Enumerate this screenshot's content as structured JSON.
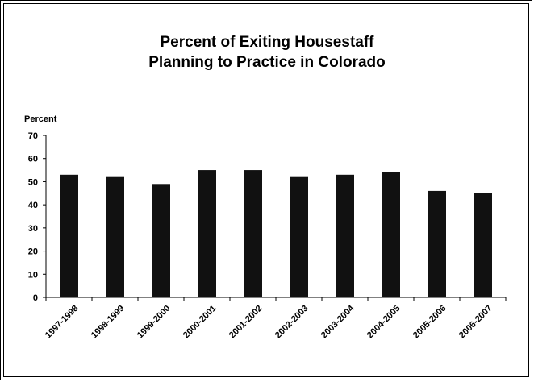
{
  "chart_data": {
    "type": "bar",
    "title": "Percent of Exiting Housestaff Planning to Practice in Colorado",
    "title_lines": [
      "Percent of Exiting Housestaff",
      "Planning to Practice in Colorado"
    ],
    "ylabel": "Percent",
    "xlabel": "",
    "ylim": [
      0,
      70
    ],
    "yticks": [
      0,
      10,
      20,
      30,
      40,
      50,
      60,
      70
    ],
    "categories": [
      "1997-1998",
      "1998-1999",
      "1999-2000",
      "2000-2001",
      "2001-2002",
      "2002-2003",
      "2003-2004",
      "2004-2005",
      "2005-2006",
      "2006-2007"
    ],
    "values": [
      53,
      52,
      49,
      55,
      55,
      52,
      53,
      54,
      46,
      45
    ],
    "bar_color": "#111111",
    "grid": false,
    "legend": "none"
  }
}
